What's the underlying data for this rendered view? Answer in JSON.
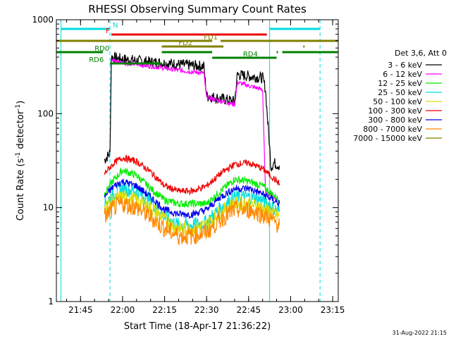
{
  "chart_data": {
    "type": "line",
    "title": "RHESSI Observing Summary Count Rates",
    "xlabel": "Start Time (18-Apr-17 21:36:22)",
    "ylabel_main": "Count Rate (s",
    "ylabel_sup1": "-1",
    "ylabel_mid": " detector",
    "ylabel_sup2": "-1",
    "ylabel_end": ")",
    "footer": "31-Aug-2022 21:15",
    "y_scale": "log",
    "xlim": [
      "21:36:22",
      "23:17:00"
    ],
    "ylim": [
      1,
      1000
    ],
    "x_ticks": [
      "21:45",
      "22:00",
      "22:15",
      "22:30",
      "22:45",
      "23:00",
      "23:15"
    ],
    "y_ticks": [
      {
        "value": 1,
        "label": "1"
      },
      {
        "value": 10,
        "label": "10"
      },
      {
        "value": 100,
        "label": "100"
      },
      {
        "value": 1000,
        "label": "1000"
      }
    ],
    "legend_position": "right",
    "legend_title": "Det 3,6, Att 0",
    "series": [
      {
        "name": "3 - 6 keV",
        "color": "#000000",
        "x": [
          "21:53:30",
          "21:55:30",
          "21:56:00",
          "22:00:00",
          "22:10:00",
          "22:20:00",
          "22:29:00",
          "22:30:00",
          "22:40:00",
          "22:41:00",
          "22:50:00",
          "22:51:00",
          "22:53:00",
          "22:54:00",
          "22:56:00"
        ],
        "y": [
          32,
          38,
          400,
          380,
          355,
          335,
          320,
          155,
          135,
          260,
          240,
          185,
          27,
          30,
          28
        ]
      },
      {
        "name": "6 - 12 keV",
        "color": "#ff00ff",
        "x": [
          "21:56:00",
          "22:00:00",
          "22:10:00",
          "22:20:00",
          "22:29:00",
          "22:30:00",
          "22:40:00",
          "22:41:00",
          "22:50:00",
          "22:51:00",
          "22:56:00"
        ],
        "y": [
          370,
          350,
          320,
          290,
          270,
          150,
          125,
          215,
          180,
          15,
          12
        ]
      },
      {
        "name": "12 - 25 keV",
        "color": "#00ee00",
        "x": [
          "21:53:30",
          "21:57:00",
          "22:00:00",
          "22:05:00",
          "22:10:00",
          "22:15:00",
          "22:20:00",
          "22:25:00",
          "22:30:00",
          "22:35:00",
          "22:40:00",
          "22:45:00",
          "22:50:00",
          "22:56:00"
        ],
        "y": [
          14,
          20,
          25,
          22,
          16,
          12,
          11,
          11,
          11,
          15,
          20,
          19,
          17,
          12
        ]
      },
      {
        "name": "25 - 50 keV",
        "color": "#00dddd",
        "x": [
          "21:53:30",
          "21:57:00",
          "22:00:00",
          "22:05:00",
          "22:10:00",
          "22:15:00",
          "22:20:00",
          "22:25:00",
          "22:30:00",
          "22:35:00",
          "22:40:00",
          "22:45:00",
          "22:50:00",
          "22:56:00"
        ],
        "y": [
          11,
          14,
          16,
          15,
          12,
          8,
          6.5,
          6.5,
          7,
          10,
          13,
          13,
          12,
          9
        ]
      },
      {
        "name": "50 - 100 keV",
        "color": "#dddd00",
        "x": [
          "21:53:30",
          "21:57:00",
          "22:00:00",
          "22:05:00",
          "22:10:00",
          "22:15:00",
          "22:20:00",
          "22:25:00",
          "22:30:00",
          "22:35:00",
          "22:40:00",
          "22:45:00",
          "22:50:00",
          "22:56:00"
        ],
        "y": [
          10,
          12,
          13,
          12,
          10,
          7.5,
          6,
          6,
          6.5,
          9,
          11,
          11,
          10,
          8
        ]
      },
      {
        "name": "100 - 300 keV",
        "color": "#ee0000",
        "x": [
          "21:53:30",
          "21:57:00",
          "22:00:00",
          "22:05:00",
          "22:10:00",
          "22:15:00",
          "22:20:00",
          "22:25:00",
          "22:30:00",
          "22:35:00",
          "22:40:00",
          "22:45:00",
          "22:50:00",
          "22:56:00"
        ],
        "y": [
          23,
          30,
          34,
          31,
          24,
          17,
          15,
          15,
          17,
          23,
          29,
          30,
          26,
          18
        ]
      },
      {
        "name": "300 - 800 keV",
        "color": "#0000ee",
        "x": [
          "21:53:30",
          "21:57:00",
          "22:00:00",
          "22:05:00",
          "22:10:00",
          "22:15:00",
          "22:20:00",
          "22:25:00",
          "22:30:00",
          "22:35:00",
          "22:40:00",
          "22:45:00",
          "22:50:00",
          "22:56:00"
        ],
        "y": [
          13,
          17,
          19,
          17,
          13,
          9.5,
          8.5,
          8.5,
          9.5,
          13,
          16,
          16,
          14,
          11
        ]
      },
      {
        "name": "800 - 7000 keV",
        "color": "#ff8800",
        "x": [
          "21:53:30",
          "21:57:00",
          "22:00:00",
          "22:05:00",
          "22:10:00",
          "22:15:00",
          "22:20:00",
          "22:25:00",
          "22:30:00",
          "22:35:00",
          "22:40:00",
          "22:45:00",
          "22:50:00",
          "22:56:00"
        ],
        "y": [
          8,
          10,
          11,
          10,
          8,
          6,
          5,
          5,
          5.5,
          7.5,
          9.5,
          9.5,
          8.5,
          6.5
        ]
      },
      {
        "name": "7000 - 15000 keV",
        "color": "#808000",
        "x": [],
        "y": []
      }
    ],
    "vertical_markers": [
      {
        "time": "21:38:00",
        "color": "#00dddd",
        "style": "solid"
      },
      {
        "time": "21:55:30",
        "color": "#00dddd",
        "style": "dashed"
      },
      {
        "time": "22:52:30",
        "color": "#00dddd",
        "style": "solid"
      },
      {
        "time": "23:10:30",
        "color": "#00dddd",
        "style": "dashed"
      }
    ],
    "flag_bars": [
      {
        "label": "N",
        "color": "#00dddd",
        "segments": [
          [
            "21:38:00",
            "21:55:30"
          ],
          [
            "22:52:30",
            "23:10:30"
          ]
        ],
        "level": 0
      },
      {
        "label": "F",
        "color": "#ee0000",
        "segments": [
          [
            "21:56:00",
            "22:51:30"
          ]
        ],
        "level": 1
      },
      {
        "label": "FD1",
        "color": "#808000",
        "segments": [
          [
            "21:36:22",
            "22:32:00"
          ],
          [
            "22:35:00",
            "23:17:00"
          ]
        ],
        "level": 2
      },
      {
        "label": "FD2",
        "color": "#808000",
        "segments": [
          [
            "22:14:00",
            "22:36:00"
          ],
          [
            "23:04:30",
            "23:05:00"
          ]
        ],
        "level": 3
      },
      {
        "label": "RD0",
        "color": "#008000",
        "segments": [
          [
            "21:36:22",
            "21:53:00"
          ],
          [
            "22:14:00",
            "22:32:00"
          ],
          [
            "22:55:00",
            "22:55:30"
          ],
          [
            "22:57:00",
            "23:17:00"
          ]
        ],
        "level": 4
      },
      {
        "label": "RD4",
        "color": "#008000",
        "segments": [
          [
            "22:32:00",
            "22:55:00"
          ]
        ],
        "level": 5
      },
      {
        "label": "RD6",
        "color": "#008000",
        "segments": [
          [
            "21:55:30",
            "22:14:00"
          ]
        ],
        "level": 6
      }
    ]
  }
}
